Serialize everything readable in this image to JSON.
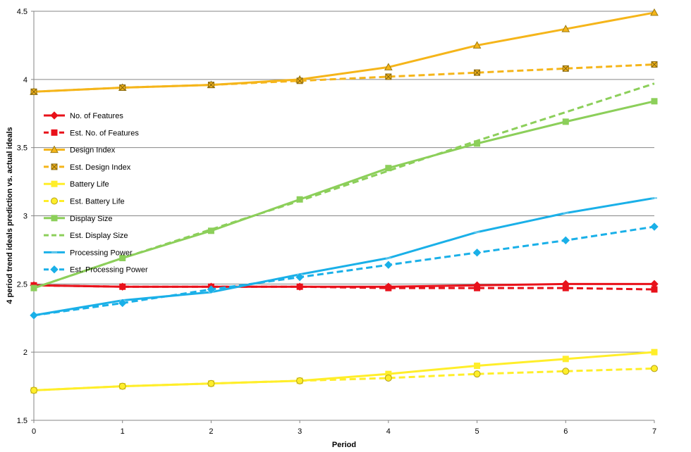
{
  "chart_data": {
    "type": "line",
    "title": "",
    "xlabel": "Period",
    "ylabel": "4 period trend ideals prediction vs. actual ideals",
    "x": [
      0,
      1,
      2,
      3,
      4,
      5,
      6,
      7
    ],
    "x_tick_labels": [
      "0",
      "1",
      "2",
      "3",
      "4",
      "5",
      "6",
      "7"
    ],
    "ylim": [
      1.5,
      4.5
    ],
    "y_ticks": [
      1.5,
      2,
      2.5,
      3,
      3.5,
      4,
      4.5
    ],
    "y_tick_labels": [
      "1.5",
      "2",
      "2.5",
      "3",
      "3.5",
      "4",
      "4.5"
    ],
    "grid": "horizontal",
    "legend_position": "left-inside",
    "series": [
      {
        "name": "No. of Features",
        "color": "#e8111a",
        "dash": false,
        "marker": "diamond",
        "values": [
          2.49,
          2.48,
          2.48,
          2.48,
          2.48,
          2.49,
          2.5,
          2.5
        ]
      },
      {
        "name": "Est. No. of Features",
        "color": "#e8111a",
        "dash": true,
        "marker": "square",
        "values": [
          2.49,
          2.48,
          2.48,
          2.48,
          2.47,
          2.47,
          2.47,
          2.46
        ]
      },
      {
        "name": "Design Index",
        "color": "#f5b51a",
        "dash": false,
        "marker": "triangle",
        "values": [
          3.91,
          3.94,
          3.96,
          4.0,
          4.09,
          4.25,
          4.37,
          4.49
        ]
      },
      {
        "name": "Est. Design Index",
        "color": "#f5b51a",
        "dash": true,
        "marker": "x-square",
        "values": [
          3.91,
          3.94,
          3.96,
          3.99,
          4.02,
          4.05,
          4.08,
          4.11
        ]
      },
      {
        "name": "Battery Life",
        "color": "#ffee2a",
        "dash": false,
        "marker": "square",
        "values": [
          1.72,
          1.75,
          1.77,
          1.79,
          1.84,
          1.9,
          1.95,
          2.0
        ]
      },
      {
        "name": "Est. Battery Life",
        "color": "#ffee2a",
        "dash": true,
        "marker": "circle",
        "values": [
          1.72,
          1.75,
          1.77,
          1.79,
          1.81,
          1.84,
          1.86,
          1.88
        ]
      },
      {
        "name": "Display Size",
        "color": "#8ccf5a",
        "dash": false,
        "marker": "square",
        "values": [
          2.47,
          2.69,
          2.89,
          3.12,
          3.35,
          3.53,
          3.69,
          3.84
        ]
      },
      {
        "name": "Est. Display Size",
        "color": "#8ccf5a",
        "dash": true,
        "marker": "none",
        "values": [
          2.47,
          2.69,
          2.9,
          3.11,
          3.33,
          3.55,
          3.76,
          3.97
        ]
      },
      {
        "name": "Processing Power",
        "color": "#1ab0e8",
        "dash": false,
        "marker": "dash",
        "values": [
          2.27,
          2.38,
          2.44,
          2.57,
          2.69,
          2.88,
          3.02,
          3.13
        ]
      },
      {
        "name": "Est. Processing Power",
        "color": "#1ab0e8",
        "dash": true,
        "marker": "diamond",
        "values": [
          2.27,
          2.36,
          2.46,
          2.55,
          2.64,
          2.73,
          2.82,
          2.92
        ]
      }
    ]
  }
}
